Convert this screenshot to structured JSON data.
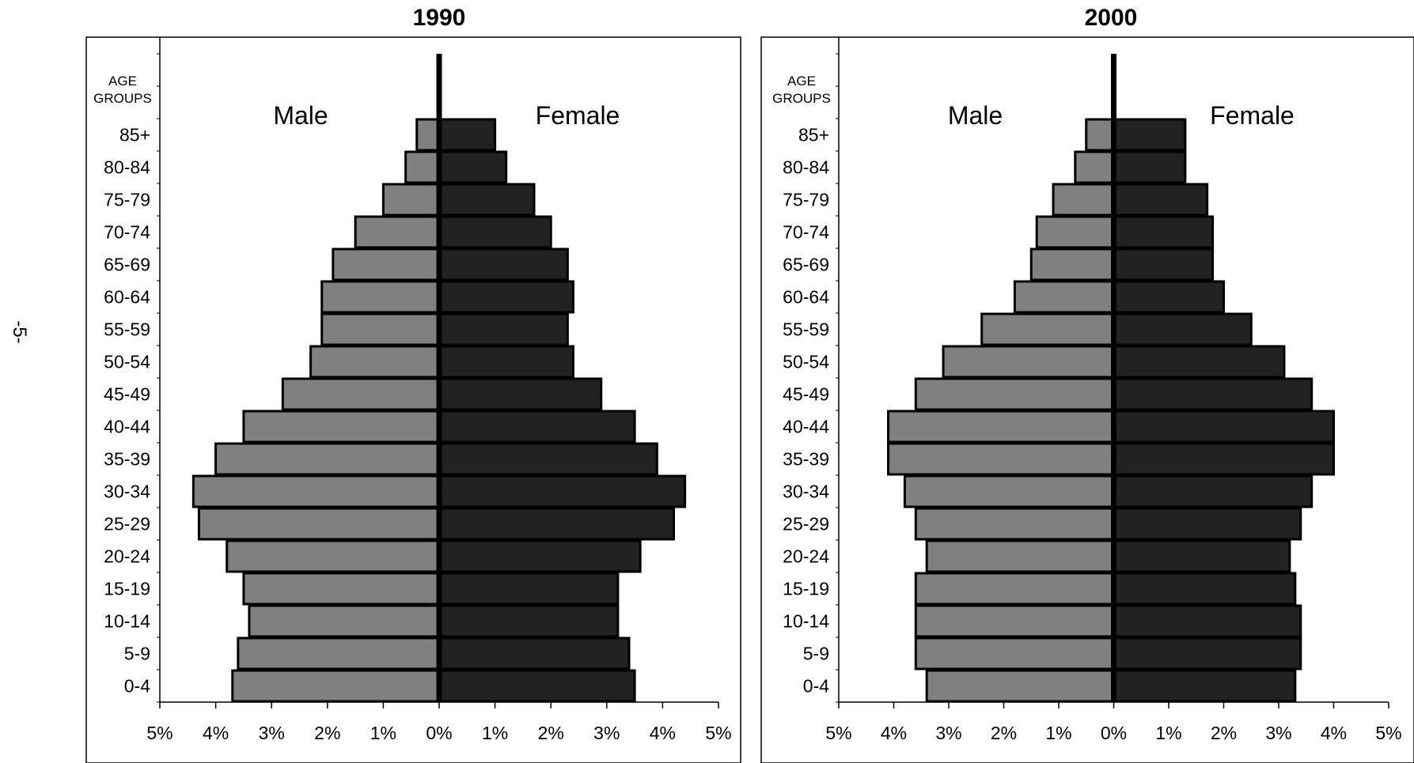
{
  "page": {
    "page_number": "-5-"
  },
  "chart_data": [
    {
      "type": "bar",
      "title": "1990",
      "age_header_line1": "AGE",
      "age_header_line2": "GROUPS",
      "male_label": "Male",
      "female_label": "Female",
      "xlim": [
        -5,
        5
      ],
      "x_ticks": [
        "5%",
        "4%",
        "3%",
        "2%",
        "1%",
        "0%",
        "1%",
        "2%",
        "3%",
        "4%",
        "5%"
      ],
      "categories": [
        "85+",
        "80-84",
        "75-79",
        "70-74",
        "65-69",
        "60-64",
        "55-59",
        "50-54",
        "45-49",
        "40-44",
        "35-39",
        "30-34",
        "25-29",
        "20-24",
        "15-19",
        "10-14",
        "5-9",
        "0-4"
      ],
      "series": [
        {
          "name": "Male",
          "color": "#808080",
          "values": [
            0.4,
            0.6,
            1.0,
            1.5,
            1.9,
            2.1,
            2.1,
            2.3,
            2.8,
            3.5,
            4.0,
            4.4,
            4.3,
            3.8,
            3.5,
            3.4,
            3.6,
            3.7
          ]
        },
        {
          "name": "Female",
          "color": "#222222",
          "values": [
            1.0,
            1.2,
            1.7,
            2.0,
            2.3,
            2.4,
            2.3,
            2.4,
            2.9,
            3.5,
            3.9,
            4.4,
            4.2,
            3.6,
            3.2,
            3.2,
            3.4,
            3.5
          ]
        }
      ]
    },
    {
      "type": "bar",
      "title": "2000",
      "age_header_line1": "AGE",
      "age_header_line2": "GROUPS",
      "male_label": "Male",
      "female_label": "Female",
      "xlim": [
        -5,
        5
      ],
      "x_ticks": [
        "5%",
        "4%",
        "3%",
        "2%",
        "1%",
        "0%",
        "1%",
        "2%",
        "3%",
        "4%",
        "5%"
      ],
      "categories": [
        "85+",
        "80-84",
        "75-79",
        "70-74",
        "65-69",
        "60-64",
        "55-59",
        "50-54",
        "45-49",
        "40-44",
        "35-39",
        "30-34",
        "25-29",
        "20-24",
        "15-19",
        "10-14",
        "5-9",
        "0-4"
      ],
      "series": [
        {
          "name": "Male",
          "color": "#808080",
          "values": [
            0.5,
            0.7,
            1.1,
            1.4,
            1.5,
            1.8,
            2.4,
            3.1,
            3.6,
            4.1,
            4.1,
            3.8,
            3.6,
            3.4,
            3.6,
            3.6,
            3.6,
            3.4
          ]
        },
        {
          "name": "Female",
          "color": "#222222",
          "values": [
            1.3,
            1.3,
            1.7,
            1.8,
            1.8,
            2.0,
            2.5,
            3.1,
            3.6,
            4.0,
            4.0,
            3.6,
            3.4,
            3.2,
            3.3,
            3.4,
            3.4,
            3.3
          ]
        }
      ]
    }
  ]
}
